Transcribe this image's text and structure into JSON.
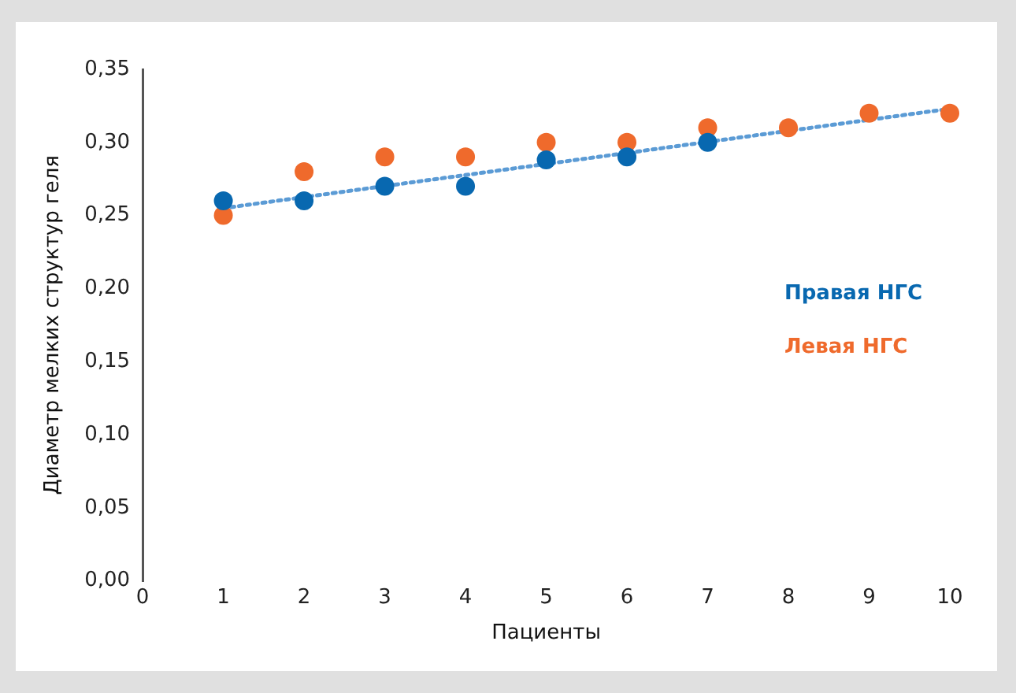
{
  "chart_data": {
    "type": "scatter",
    "xlabel": "Пациенты",
    "ylabel": "Диаметр мелких структур геля",
    "series": [
      {
        "name": "Правая НГС",
        "color": "#0868b0",
        "x": [
          1,
          2,
          3,
          4,
          5,
          6,
          7
        ],
        "values": [
          0.26,
          0.26,
          0.27,
          0.27,
          0.288,
          0.29,
          0.3
        ]
      },
      {
        "name": "Левая НГС",
        "color": "#ef6a2c",
        "x": [
          1,
          2,
          3,
          4,
          5,
          6,
          7,
          8,
          9,
          10
        ],
        "values": [
          0.25,
          0.28,
          0.29,
          0.29,
          0.3,
          0.3,
          0.31,
          0.31,
          0.32,
          0.32
        ]
      },
      {
        "type": "line",
        "color": "#5b9bd5",
        "line_style": "dotted",
        "marker": "none",
        "x": [
          1,
          10
        ],
        "values": [
          0.255,
          0.323
        ]
      }
    ],
    "xlim": [
      0,
      10
    ],
    "xticks": [
      0,
      1,
      2,
      3,
      4,
      5,
      6,
      7,
      8,
      9,
      10
    ],
    "ylim": [
      0,
      0.35
    ],
    "yticks": [
      {
        "value": 0,
        "label": "0,00"
      },
      {
        "value": 0.05,
        "label": "0,05"
      },
      {
        "value": 0.1,
        "label": "0,10"
      },
      {
        "value": 0.15,
        "label": "0,15"
      },
      {
        "value": 0.2,
        "label": "0,20"
      },
      {
        "value": 0.25,
        "label": "0,25"
      },
      {
        "value": 0.3,
        "label": "0,30"
      },
      {
        "value": 0.35,
        "label": "0,35"
      }
    ],
    "grid": false,
    "legend": "right",
    "marker": "circle"
  }
}
